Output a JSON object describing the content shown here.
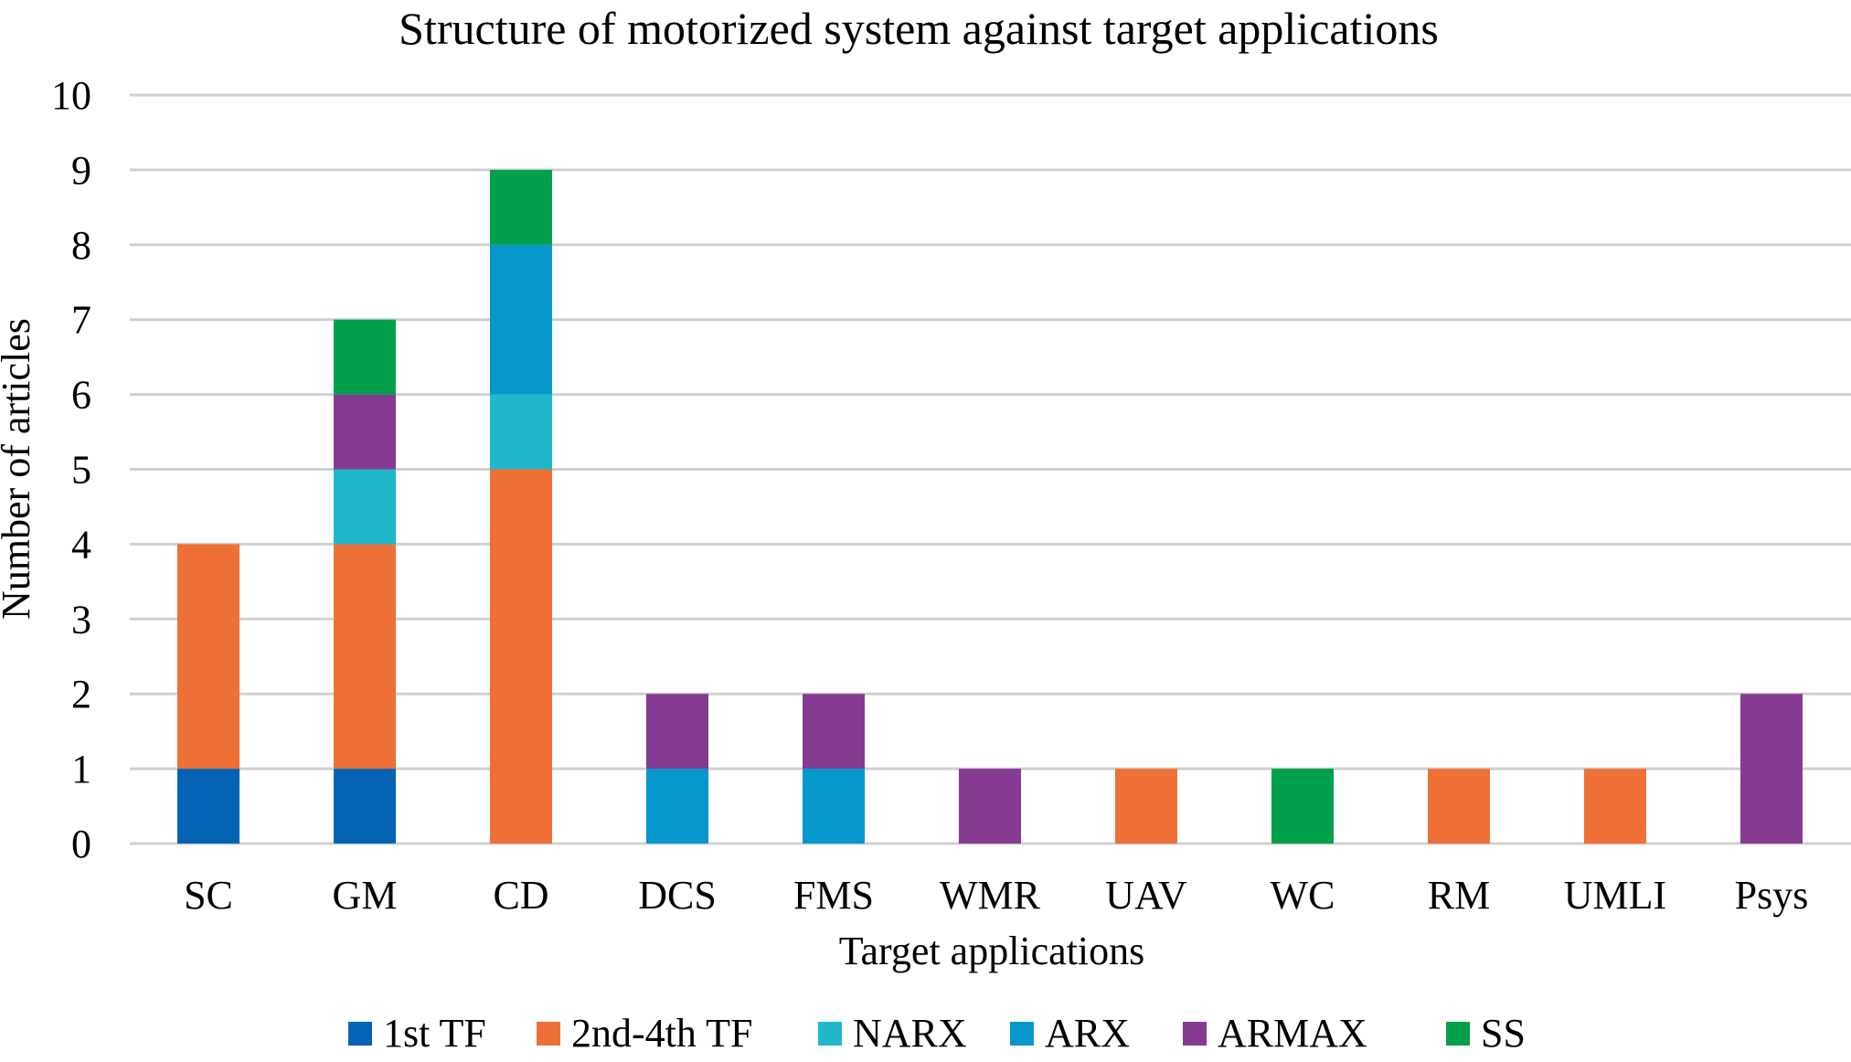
{
  "chart_data": {
    "type": "bar",
    "stacked": true,
    "title": "Structure of motorized system against target applications",
    "xlabel": "Target applications",
    "ylabel": "Number of articles",
    "ylim": [
      0,
      10
    ],
    "yticks": [
      0,
      1,
      2,
      3,
      4,
      5,
      6,
      7,
      8,
      9,
      10
    ],
    "grid": true,
    "legend_position": "bottom",
    "categories": [
      "SC",
      "GM",
      "CD",
      "DCS",
      "FMS",
      "WMR",
      "UAV",
      "WC",
      "RM",
      "UMLI",
      "Psys"
    ],
    "series": [
      {
        "name": "1st TF",
        "color": "#0563B5",
        "values": [
          1,
          1,
          0,
          0,
          0,
          0,
          0,
          0,
          0,
          0,
          0
        ]
      },
      {
        "name": "2nd-4th TF",
        "color": "#EE7037",
        "values": [
          3,
          3,
          5,
          0,
          0,
          0,
          1,
          0,
          1,
          1,
          0
        ]
      },
      {
        "name": "NARX",
        "color": "#1FB8CB",
        "values": [
          0,
          1,
          1,
          0,
          0,
          0,
          0,
          0,
          0,
          0,
          0
        ]
      },
      {
        "name": "ARX",
        "color": "#0497CC",
        "values": [
          0,
          0,
          2,
          1,
          1,
          0,
          0,
          0,
          0,
          0,
          0
        ]
      },
      {
        "name": "ARMAX",
        "color": "#863B92",
        "values": [
          0,
          1,
          0,
          1,
          1,
          1,
          0,
          0,
          0,
          0,
          2
        ]
      },
      {
        "name": "SS",
        "color": "#03A04B",
        "values": [
          0,
          1,
          1,
          0,
          0,
          0,
          0,
          1,
          0,
          0,
          0
        ]
      }
    ]
  }
}
